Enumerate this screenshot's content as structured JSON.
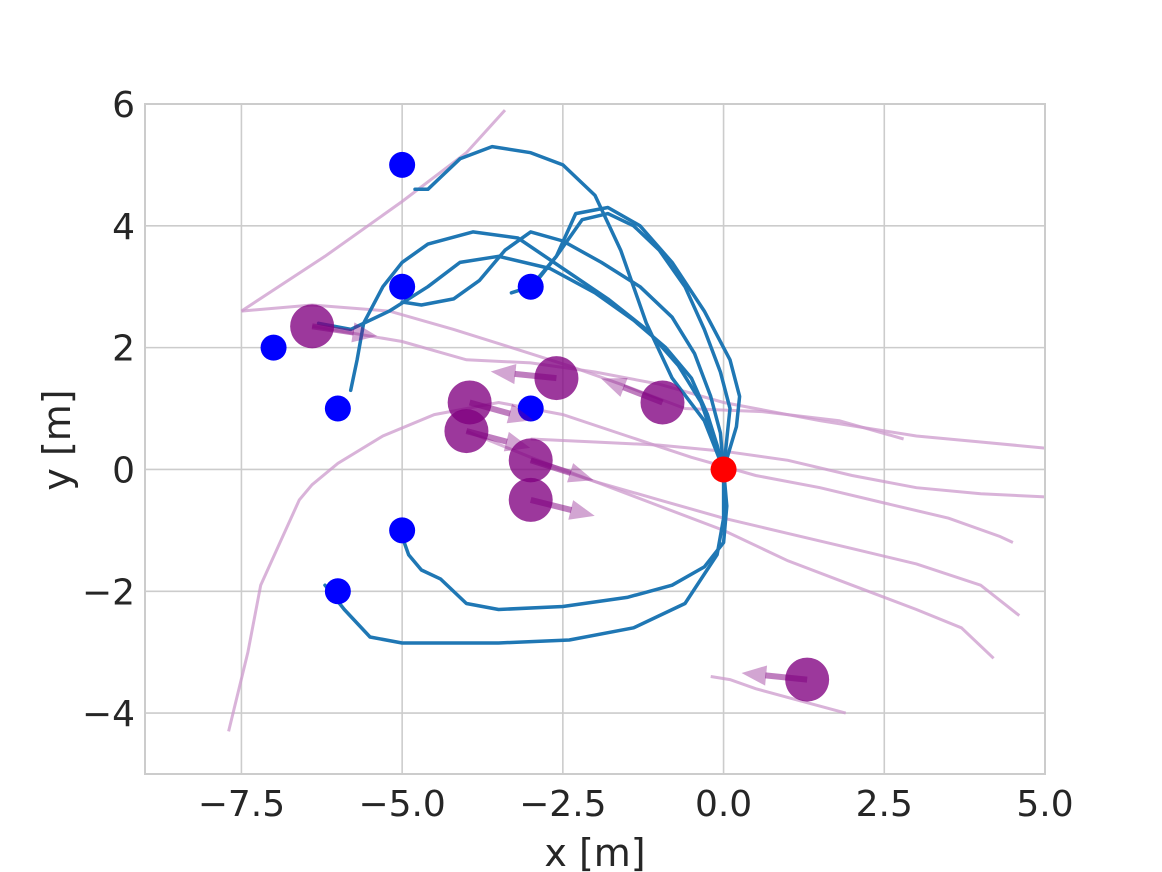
{
  "chart_data": {
    "type": "scatter",
    "title": "",
    "xlabel": "x [m]",
    "ylabel": "y [m]",
    "xlim": [
      -9,
      5
    ],
    "ylim": [
      -5,
      6
    ],
    "xticks": [
      -7.5,
      -5.0,
      -2.5,
      0.0,
      2.5,
      5.0
    ],
    "xtick_labels": [
      "−7.5",
      "−5.0",
      "−2.5",
      "0.0",
      "2.5",
      "5.0"
    ],
    "yticks": [
      -4,
      -2,
      0,
      2,
      4,
      6
    ],
    "ytick_labels": [
      "−4",
      "−2",
      "0",
      "2",
      "4",
      "6"
    ],
    "grid": true,
    "colors": {
      "trajectory": "#1f77b4",
      "start": "#ff0000",
      "goal": "#0000ff",
      "agent": "#800080",
      "agent_path": "#cc99cc",
      "grid": "#cccccc",
      "frame": "#cccccc"
    },
    "start_point": [
      0.0,
      0.0
    ],
    "goal_points": [
      [
        -5.0,
        5.0
      ],
      [
        -5.0,
        3.0
      ],
      [
        -3.0,
        3.0
      ],
      [
        -7.0,
        2.0
      ],
      [
        -6.0,
        1.0
      ],
      [
        -3.0,
        1.0
      ],
      [
        -5.0,
        -1.0
      ],
      [
        -6.0,
        -2.0
      ]
    ],
    "robot_trajectories": [
      [
        [
          0.0,
          0.0
        ],
        [
          -0.1,
          0.4
        ],
        [
          -0.25,
          0.9
        ],
        [
          -0.5,
          1.5
        ],
        [
          -0.9,
          2.0
        ],
        [
          -1.4,
          2.45
        ],
        [
          -2.0,
          2.9
        ],
        [
          -2.7,
          3.3
        ],
        [
          -3.5,
          3.5
        ],
        [
          -4.1,
          3.4
        ],
        [
          -4.6,
          3.0
        ],
        [
          -5.2,
          2.6
        ],
        [
          -5.8,
          2.3
        ],
        [
          -6.3,
          2.4
        ]
      ],
      [
        [
          0.0,
          0.0
        ],
        [
          -0.15,
          0.5
        ],
        [
          -0.35,
          1.1
        ],
        [
          -0.7,
          1.7
        ],
        [
          -1.2,
          2.3
        ],
        [
          -1.8,
          2.8
        ],
        [
          -2.5,
          3.3
        ],
        [
          -3.2,
          3.8
        ],
        [
          -3.9,
          3.9
        ],
        [
          -4.6,
          3.7
        ],
        [
          -5.0,
          3.4
        ],
        [
          -5.3,
          3.0
        ],
        [
          -5.6,
          2.4
        ],
        [
          -5.7,
          1.8
        ],
        [
          -5.8,
          1.3
        ]
      ],
      [
        [
          0.0,
          0.0
        ],
        [
          -0.05,
          0.6
        ],
        [
          -0.2,
          1.2
        ],
        [
          -0.45,
          1.9
        ],
        [
          -0.8,
          2.5
        ],
        [
          -1.3,
          3.0
        ],
        [
          -1.9,
          3.4
        ],
        [
          -2.5,
          3.75
        ],
        [
          -3.0,
          3.9
        ],
        [
          -3.4,
          3.6
        ],
        [
          -3.8,
          3.1
        ],
        [
          -4.2,
          2.8
        ],
        [
          -4.7,
          2.7
        ],
        [
          -5.0,
          2.75
        ]
      ],
      [
        [
          0.0,
          0.0
        ],
        [
          0.05,
          0.5
        ],
        [
          0.1,
          1.0
        ],
        [
          -0.05,
          1.6
        ],
        [
          -0.3,
          2.3
        ],
        [
          -0.6,
          3.0
        ],
        [
          -1.0,
          3.6
        ],
        [
          -1.4,
          4.0
        ],
        [
          -1.8,
          4.2
        ],
        [
          -2.2,
          4.1
        ],
        [
          -2.6,
          3.5
        ],
        [
          -3.0,
          3.0
        ],
        [
          -3.3,
          2.9
        ]
      ],
      [
        [
          0.0,
          0.0
        ],
        [
          0.2,
          0.7
        ],
        [
          0.25,
          1.2
        ],
        [
          0.1,
          1.8
        ],
        [
          -0.3,
          2.6
        ],
        [
          -0.8,
          3.4
        ],
        [
          -1.3,
          4.0
        ],
        [
          -1.8,
          4.3
        ],
        [
          -2.3,
          4.2
        ],
        [
          -2.6,
          3.5
        ],
        [
          -2.9,
          3.1
        ]
      ],
      [
        [
          0.0,
          0.0
        ],
        [
          -0.3,
          0.8
        ],
        [
          -0.8,
          1.5
        ],
        [
          -1.2,
          2.4
        ],
        [
          -1.6,
          3.6
        ],
        [
          -2.0,
          4.5
        ],
        [
          -2.5,
          5.0
        ],
        [
          -3.0,
          5.2
        ],
        [
          -3.6,
          5.3
        ],
        [
          -4.1,
          5.1
        ],
        [
          -4.4,
          4.8
        ],
        [
          -4.6,
          4.6
        ],
        [
          -4.8,
          4.6
        ]
      ],
      [
        [
          0.0,
          0.0
        ],
        [
          0.05,
          -0.6
        ],
        [
          0.0,
          -1.2
        ],
        [
          -0.3,
          -1.6
        ],
        [
          -0.8,
          -1.9
        ],
        [
          -1.5,
          -2.1
        ],
        [
          -2.5,
          -2.25
        ],
        [
          -3.5,
          -2.3
        ],
        [
          -4.0,
          -2.2
        ],
        [
          -4.4,
          -1.8
        ],
        [
          -4.7,
          -1.65
        ],
        [
          -4.9,
          -1.4
        ],
        [
          -5.0,
          -1.1
        ]
      ],
      [
        [
          0.0,
          0.0
        ],
        [
          0.0,
          -0.8
        ],
        [
          -0.1,
          -1.4
        ],
        [
          -0.6,
          -2.2
        ],
        [
          -1.4,
          -2.6
        ],
        [
          -2.4,
          -2.8
        ],
        [
          -3.5,
          -2.85
        ],
        [
          -4.5,
          -2.85
        ],
        [
          -5.0,
          -2.85
        ],
        [
          -5.5,
          -2.75
        ],
        [
          -5.9,
          -2.3
        ],
        [
          -6.2,
          -1.9
        ]
      ]
    ],
    "agents": [
      {
        "pos": [
          -6.4,
          2.35
        ],
        "vel": [
          1.0,
          -0.15
        ]
      },
      {
        "pos": [
          -2.6,
          1.5
        ],
        "vel": [
          -1.0,
          0.1
        ]
      },
      {
        "pos": [
          -0.95,
          1.1
        ],
        "vel": [
          -0.9,
          0.35
        ]
      },
      {
        "pos": [
          -3.95,
          1.1
        ],
        "vel": [
          0.9,
          -0.25
        ]
      },
      {
        "pos": [
          -4.0,
          0.63
        ],
        "vel": [
          0.95,
          -0.25
        ]
      },
      {
        "pos": [
          -3.0,
          0.15
        ],
        "vel": [
          0.95,
          -0.3
        ]
      },
      {
        "pos": [
          -3.0,
          -0.5
        ],
        "vel": [
          1.0,
          -0.25
        ]
      },
      {
        "pos": [
          1.3,
          -3.45
        ],
        "vel": [
          -1.0,
          0.1
        ]
      }
    ],
    "agent_paths": [
      [
        [
          -7.5,
          2.6
        ],
        [
          -6.2,
          3.5
        ],
        [
          -5.0,
          4.4
        ],
        [
          -4.0,
          5.2
        ],
        [
          -3.4,
          5.9
        ]
      ],
      [
        [
          -7.5,
          2.6
        ],
        [
          -6.4,
          2.7
        ],
        [
          -5.2,
          2.6
        ],
        [
          -4.2,
          2.3
        ],
        [
          -3.3,
          2.0
        ],
        [
          -2.4,
          1.7
        ],
        [
          -1.6,
          1.4
        ],
        [
          -0.6,
          1.0
        ],
        [
          0.6,
          0.95
        ],
        [
          1.8,
          0.8
        ],
        [
          2.8,
          0.5
        ]
      ],
      [
        [
          -6.4,
          2.35
        ],
        [
          -5.0,
          2.1
        ],
        [
          -4.0,
          1.8
        ],
        [
          -3.0,
          1.75
        ],
        [
          -2.0,
          1.6
        ],
        [
          -1.0,
          1.4
        ],
        [
          0.0,
          1.1
        ],
        [
          1.5,
          0.8
        ],
        [
          3.0,
          0.55
        ],
        [
          4.0,
          0.45
        ],
        [
          5.0,
          0.35
        ]
      ],
      [
        [
          -7.7,
          -4.3
        ],
        [
          -7.4,
          -3.0
        ],
        [
          -7.2,
          -1.9
        ],
        [
          -6.9,
          -1.2
        ],
        [
          -6.6,
          -0.5
        ],
        [
          -6.4,
          -0.25
        ],
        [
          -6.0,
          0.1
        ],
        [
          -5.3,
          0.55
        ],
        [
          -4.5,
          0.9
        ],
        [
          -3.5,
          1.1
        ],
        [
          -2.5,
          0.9
        ],
        [
          -1.5,
          0.55
        ],
        [
          -0.5,
          0.2
        ],
        [
          0.5,
          -0.1
        ],
        [
          1.5,
          -0.3
        ],
        [
          2.5,
          -0.55
        ],
        [
          3.5,
          -0.8
        ],
        [
          4.3,
          -1.1
        ],
        [
          4.5,
          -1.2
        ]
      ],
      [
        [
          -4.0,
          0.63
        ],
        [
          -3.0,
          0.2
        ],
        [
          -2.0,
          -0.2
        ],
        [
          -1.0,
          -0.5
        ],
        [
          0.0,
          -0.8
        ],
        [
          1.0,
          -1.05
        ],
        [
          2.0,
          -1.3
        ],
        [
          3.0,
          -1.55
        ],
        [
          4.0,
          -1.9
        ],
        [
          4.6,
          -2.4
        ]
      ],
      [
        [
          -3.0,
          0.15
        ],
        [
          -2.0,
          -0.2
        ],
        [
          -1.0,
          -0.6
        ],
        [
          0.0,
          -1.0
        ],
        [
          1.0,
          -1.5
        ],
        [
          2.0,
          -1.9
        ],
        [
          3.0,
          -2.3
        ],
        [
          3.7,
          -2.6
        ],
        [
          4.2,
          -3.1
        ]
      ],
      [
        [
          -3.0,
          0.5
        ],
        [
          -2.0,
          0.45
        ],
        [
          -1.0,
          0.4
        ],
        [
          0.0,
          0.3
        ],
        [
          1.0,
          0.15
        ],
        [
          2.0,
          -0.1
        ],
        [
          3.0,
          -0.3
        ],
        [
          4.0,
          -0.4
        ],
        [
          5.0,
          -0.45
        ]
      ],
      [
        [
          -0.2,
          -3.4
        ],
        [
          0.1,
          -3.45
        ],
        [
          0.5,
          -3.6
        ],
        [
          1.2,
          -3.8
        ],
        [
          1.9,
          -4.0
        ]
      ]
    ]
  }
}
